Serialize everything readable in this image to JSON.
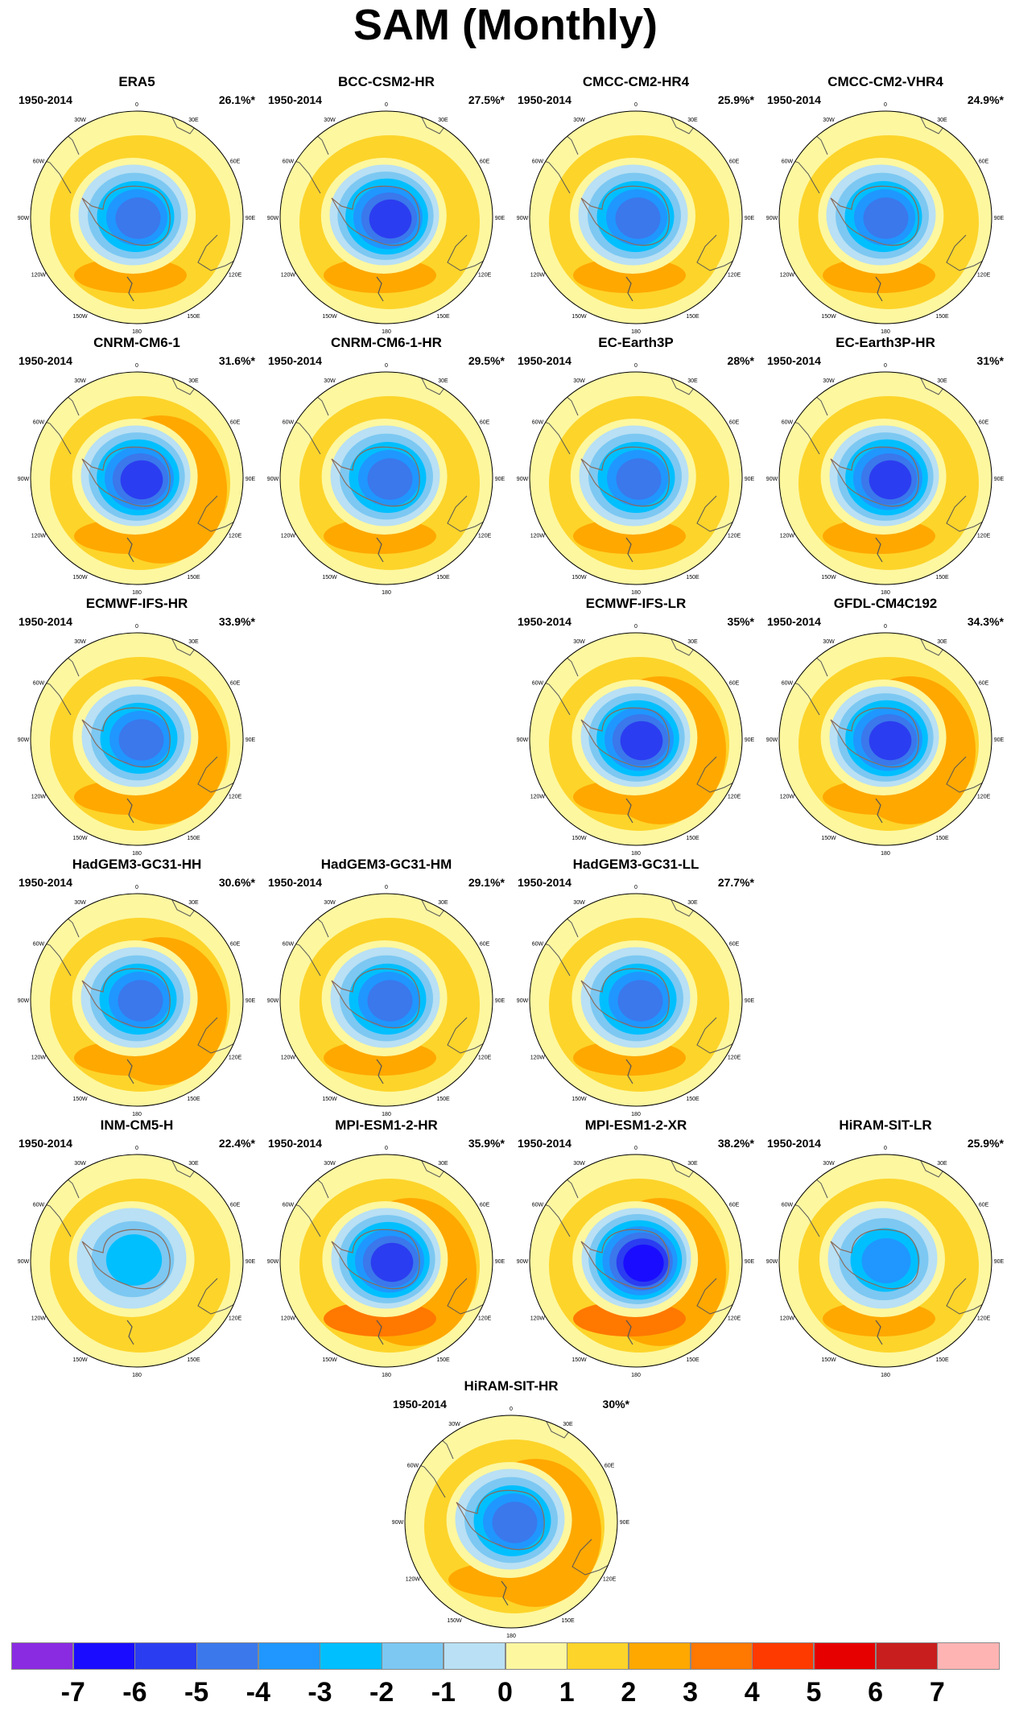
{
  "title": "SAM (Monthly)",
  "colors": {
    "background": "#ffffff",
    "land_outline": "#555555",
    "antarctic_outline": "#8a6a5a"
  },
  "panels": [
    {
      "name": "ERA5",
      "period": "1950-2014",
      "pct": "26.1%*",
      "pattern": {
        "core": -5,
        "ring": 1.6,
        "offset": 12
      }
    },
    {
      "name": "BCC-CSM2-HR",
      "period": "1950-2014",
      "pct": "27.5%*",
      "pattern": {
        "core": -6,
        "ring": 1.6,
        "offset": 8
      }
    },
    {
      "name": "CMCC-CM2-HR4",
      "period": "1950-2014",
      "pct": "25.9%*",
      "pattern": {
        "core": -5,
        "ring": 1.6,
        "offset": 10
      }
    },
    {
      "name": "CMCC-CM2-VHR4",
      "period": "1950-2014",
      "pct": "24.9%*",
      "pattern": {
        "core": -5,
        "ring": 1.5,
        "offset": 14
      }
    },
    {
      "name": "CNRM-CM6-1",
      "period": "1950-2014",
      "pct": "31.6%*",
      "pattern": {
        "core": -6,
        "ring": 2,
        "offset": 6
      }
    },
    {
      "name": "CNRM-CM6-1-HR",
      "period": "1950-2014",
      "pct": "29.5%*",
      "pattern": {
        "core": -5,
        "ring": 1.7,
        "offset": 6
      }
    },
    {
      "name": "EC-Earth3P",
      "period": "1950-2014",
      "pct": "28%*",
      "pattern": {
        "core": -5,
        "ring": 1.8,
        "offset": 8
      }
    },
    {
      "name": "EC-Earth3P-HR",
      "period": "1950-2014",
      "pct": "31%*",
      "pattern": {
        "core": -6,
        "ring": 1.8,
        "offset": 6
      }
    },
    {
      "name": "ECMWF-IFS-HR",
      "period": "1950-2014",
      "pct": "33.9%*",
      "pattern": {
        "core": -5,
        "ring": 2,
        "offset": 4
      }
    },
    {
      "name": "ECMWF-IFS-LR",
      "period": "1950-2014",
      "pct": "35%*",
      "pattern": {
        "core": -6,
        "ring": 2.2,
        "offset": 4
      }
    },
    {
      "name": "GFDL-CM4C192",
      "period": "1950-2014",
      "pct": "34.3%*",
      "pattern": {
        "core": -6,
        "ring": 2.2,
        "offset": 6
      }
    },
    {
      "name": "HadGEM3-GC31-HH",
      "period": "1950-2014",
      "pct": "30.6%*",
      "pattern": {
        "core": -5,
        "ring": 2,
        "offset": 6
      }
    },
    {
      "name": "HadGEM3-GC31-HM",
      "period": "1950-2014",
      "pct": "29.1%*",
      "pattern": {
        "core": -5,
        "ring": 1.8,
        "offset": 6
      }
    },
    {
      "name": "HadGEM3-GC31-LL",
      "period": "1950-2014",
      "pct": "27.7%*",
      "pattern": {
        "core": -5,
        "ring": 1.8,
        "offset": 4
      }
    },
    {
      "name": "INM-CM5-H",
      "period": "1950-2014",
      "pct": "22.4%*",
      "pattern": {
        "core": -3,
        "ring": 1.2,
        "offset": 16
      }
    },
    {
      "name": "MPI-ESM1-2-HR",
      "period": "1950-2014",
      "pct": "35.9%*",
      "pattern": {
        "core": -6,
        "ring": 2.6,
        "offset": 4
      }
    },
    {
      "name": "MPI-ESM1-2-XR",
      "period": "1950-2014",
      "pct": "38.2%*",
      "pattern": {
        "core": -7,
        "ring": 2.4,
        "offset": 2
      }
    },
    {
      "name": "HiRAM-SIT-LR",
      "period": "1950-2014",
      "pct": "25.9%*",
      "pattern": {
        "core": -4,
        "ring": 1.6,
        "offset": 10
      }
    },
    {
      "name": "HiRAM-SIT-HR",
      "period": "1950-2014",
      "pct": "30%*",
      "pattern": {
        "core": -5,
        "ring": 2,
        "offset": 6
      }
    }
  ],
  "map_labels": {
    "lon_top": "0",
    "lon_bottom": "180",
    "lon_30e": "30E",
    "lon_60e": "60E",
    "lon_90e": "90E",
    "lon_120e": "120E",
    "lon_150e": "150E",
    "lon_30w": "30W",
    "lon_60w": "60W",
    "lon_90w": "90W",
    "lon_120w": "120W",
    "lon_150w": "150W"
  },
  "colorbar": {
    "colors": [
      "#8a2be2",
      "#1a0dff",
      "#2b3df0",
      "#3a78ec",
      "#1f97ff",
      "#00bfff",
      "#7cc8f2",
      "#b9e0f4",
      "#fdf7a0",
      "#fdd42a",
      "#ffa800",
      "#ff7800",
      "#ff3a00",
      "#e60000",
      "#c81e1e",
      "#ffb4b4"
    ],
    "labels": [
      "-7",
      "-6",
      "-5",
      "-4",
      "-3",
      "-2",
      "-1",
      "0",
      "1",
      "2",
      "3",
      "4",
      "5",
      "6",
      "7"
    ]
  }
}
